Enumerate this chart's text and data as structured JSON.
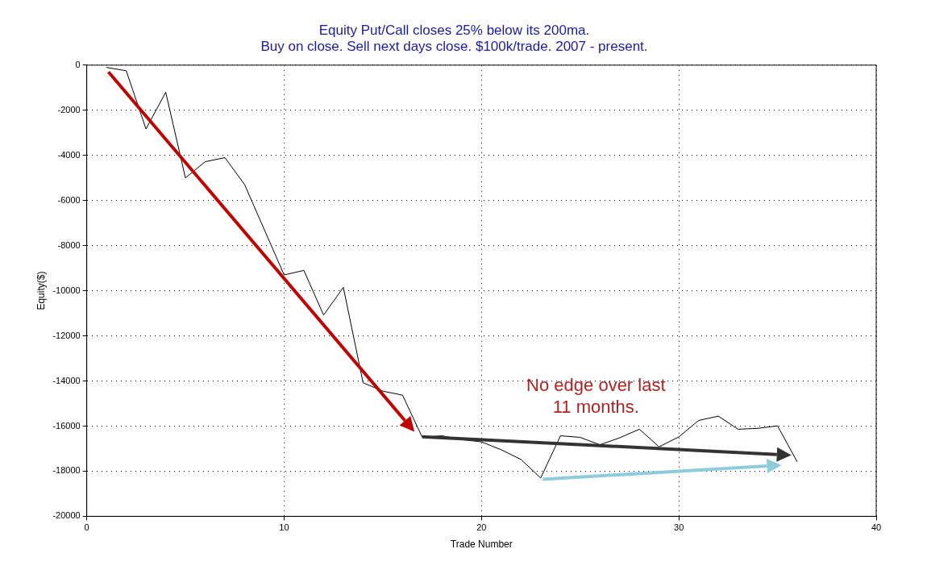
{
  "chart_data": {
    "type": "line",
    "title": [
      "Equity Put/Call closes 25% below its 200ma.",
      "Buy on close. Sell next days close. $100k/trade. 2007 - present."
    ],
    "xlabel": "Trade Number",
    "ylabel": "Equity($)",
    "x": [
      1,
      2,
      3,
      4,
      5,
      6,
      7,
      8,
      9,
      10,
      11,
      12,
      13,
      14,
      15,
      16,
      17,
      18,
      19,
      20,
      21,
      22,
      23,
      24,
      25,
      26,
      27,
      28,
      29,
      30,
      31,
      32,
      33,
      34,
      35,
      36
    ],
    "series": [
      {
        "color": "#000000",
        "values": [
          -100,
          -250,
          -2830,
          -1200,
          -5000,
          -4280,
          -4100,
          -5300,
          -7300,
          -9300,
          -9100,
          -11080,
          -9850,
          -14080,
          -14450,
          -14630,
          -16500,
          -16430,
          -16600,
          -16700,
          -17050,
          -17480,
          -18300,
          -16430,
          -16500,
          -16830,
          -16520,
          -16140,
          -16920,
          -16480,
          -15750,
          -15560,
          -16140,
          -16100,
          -15990,
          -17590
        ]
      }
    ],
    "annotations": [
      "No edge over last\n11 months."
    ],
    "xlim": [
      0,
      40
    ],
    "xticks": [
      0,
      10,
      20,
      30,
      40
    ],
    "ylim": [
      -20000,
      0
    ],
    "yticks": [
      -20000,
      -18000,
      -16000,
      -14000,
      -12000,
      -10000,
      -8000,
      -6000,
      -4000,
      -2000,
      0
    ],
    "grid": true,
    "legend": false,
    "marker": "none",
    "line_style": "solid"
  }
}
